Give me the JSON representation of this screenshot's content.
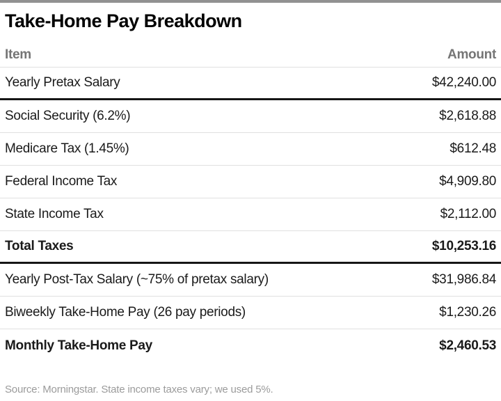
{
  "title": "Take-Home Pay Breakdown",
  "source": "Source: Morningstar. State income taxes vary; we used 5%.",
  "colors": {
    "top_bar": "#919191",
    "header_text": "#757575",
    "body_text": "#1a1a1a",
    "source_text": "#9b9b9b",
    "thin_divider": "#e0e0e0",
    "thick_divider": "#161616",
    "background": "#ffffff"
  },
  "table": {
    "columns": [
      "Item",
      "Amount"
    ],
    "rows": [
      {
        "item": "Yearly Pretax Salary",
        "amount": "$42,240.00",
        "bold": false,
        "divider_after": "thick"
      },
      {
        "item": "Social Security (6.2%)",
        "amount": "$2,618.88",
        "bold": false,
        "divider_after": "thin"
      },
      {
        "item": "Medicare Tax (1.45%)",
        "amount": "$612.48",
        "bold": false,
        "divider_after": "thin"
      },
      {
        "item": "Federal Income Tax",
        "amount": "$4,909.80",
        "bold": false,
        "divider_after": "thin"
      },
      {
        "item": "State Income Tax",
        "amount": "$2,112.00",
        "bold": false,
        "divider_after": "thin"
      },
      {
        "item": "Total Taxes",
        "amount": "$10,253.16",
        "bold": true,
        "divider_after": "thick"
      },
      {
        "item": "Yearly Post-Tax Salary (~75% of pretax salary)",
        "amount": "$31,986.84",
        "bold": false,
        "divider_after": "thin"
      },
      {
        "item": "Biweekly Take-Home Pay (26 pay periods)",
        "amount": "$1,230.26",
        "bold": false,
        "divider_after": "thin"
      },
      {
        "item": "Monthly Take-Home Pay",
        "amount": "$2,460.53",
        "bold": true,
        "divider_after": "none"
      }
    ]
  },
  "chart_data": {
    "type": "table",
    "title": "Take-Home Pay Breakdown",
    "columns": [
      "Item",
      "Amount"
    ],
    "rows": [
      [
        "Yearly Pretax Salary",
        42240.0
      ],
      [
        "Social Security (6.2%)",
        2618.88
      ],
      [
        "Medicare Tax (1.45%)",
        612.48
      ],
      [
        "Federal Income Tax",
        4909.8
      ],
      [
        "State Income Tax",
        2112.0
      ],
      [
        "Total Taxes",
        10253.16
      ],
      [
        "Yearly Post-Tax Salary (~75% of pretax salary)",
        31986.84
      ],
      [
        "Biweekly Take-Home Pay (26 pay periods)",
        1230.26
      ],
      [
        "Monthly Take-Home Pay",
        2460.53
      ]
    ],
    "source": "Source: Morningstar. State income taxes vary; we used 5%."
  }
}
